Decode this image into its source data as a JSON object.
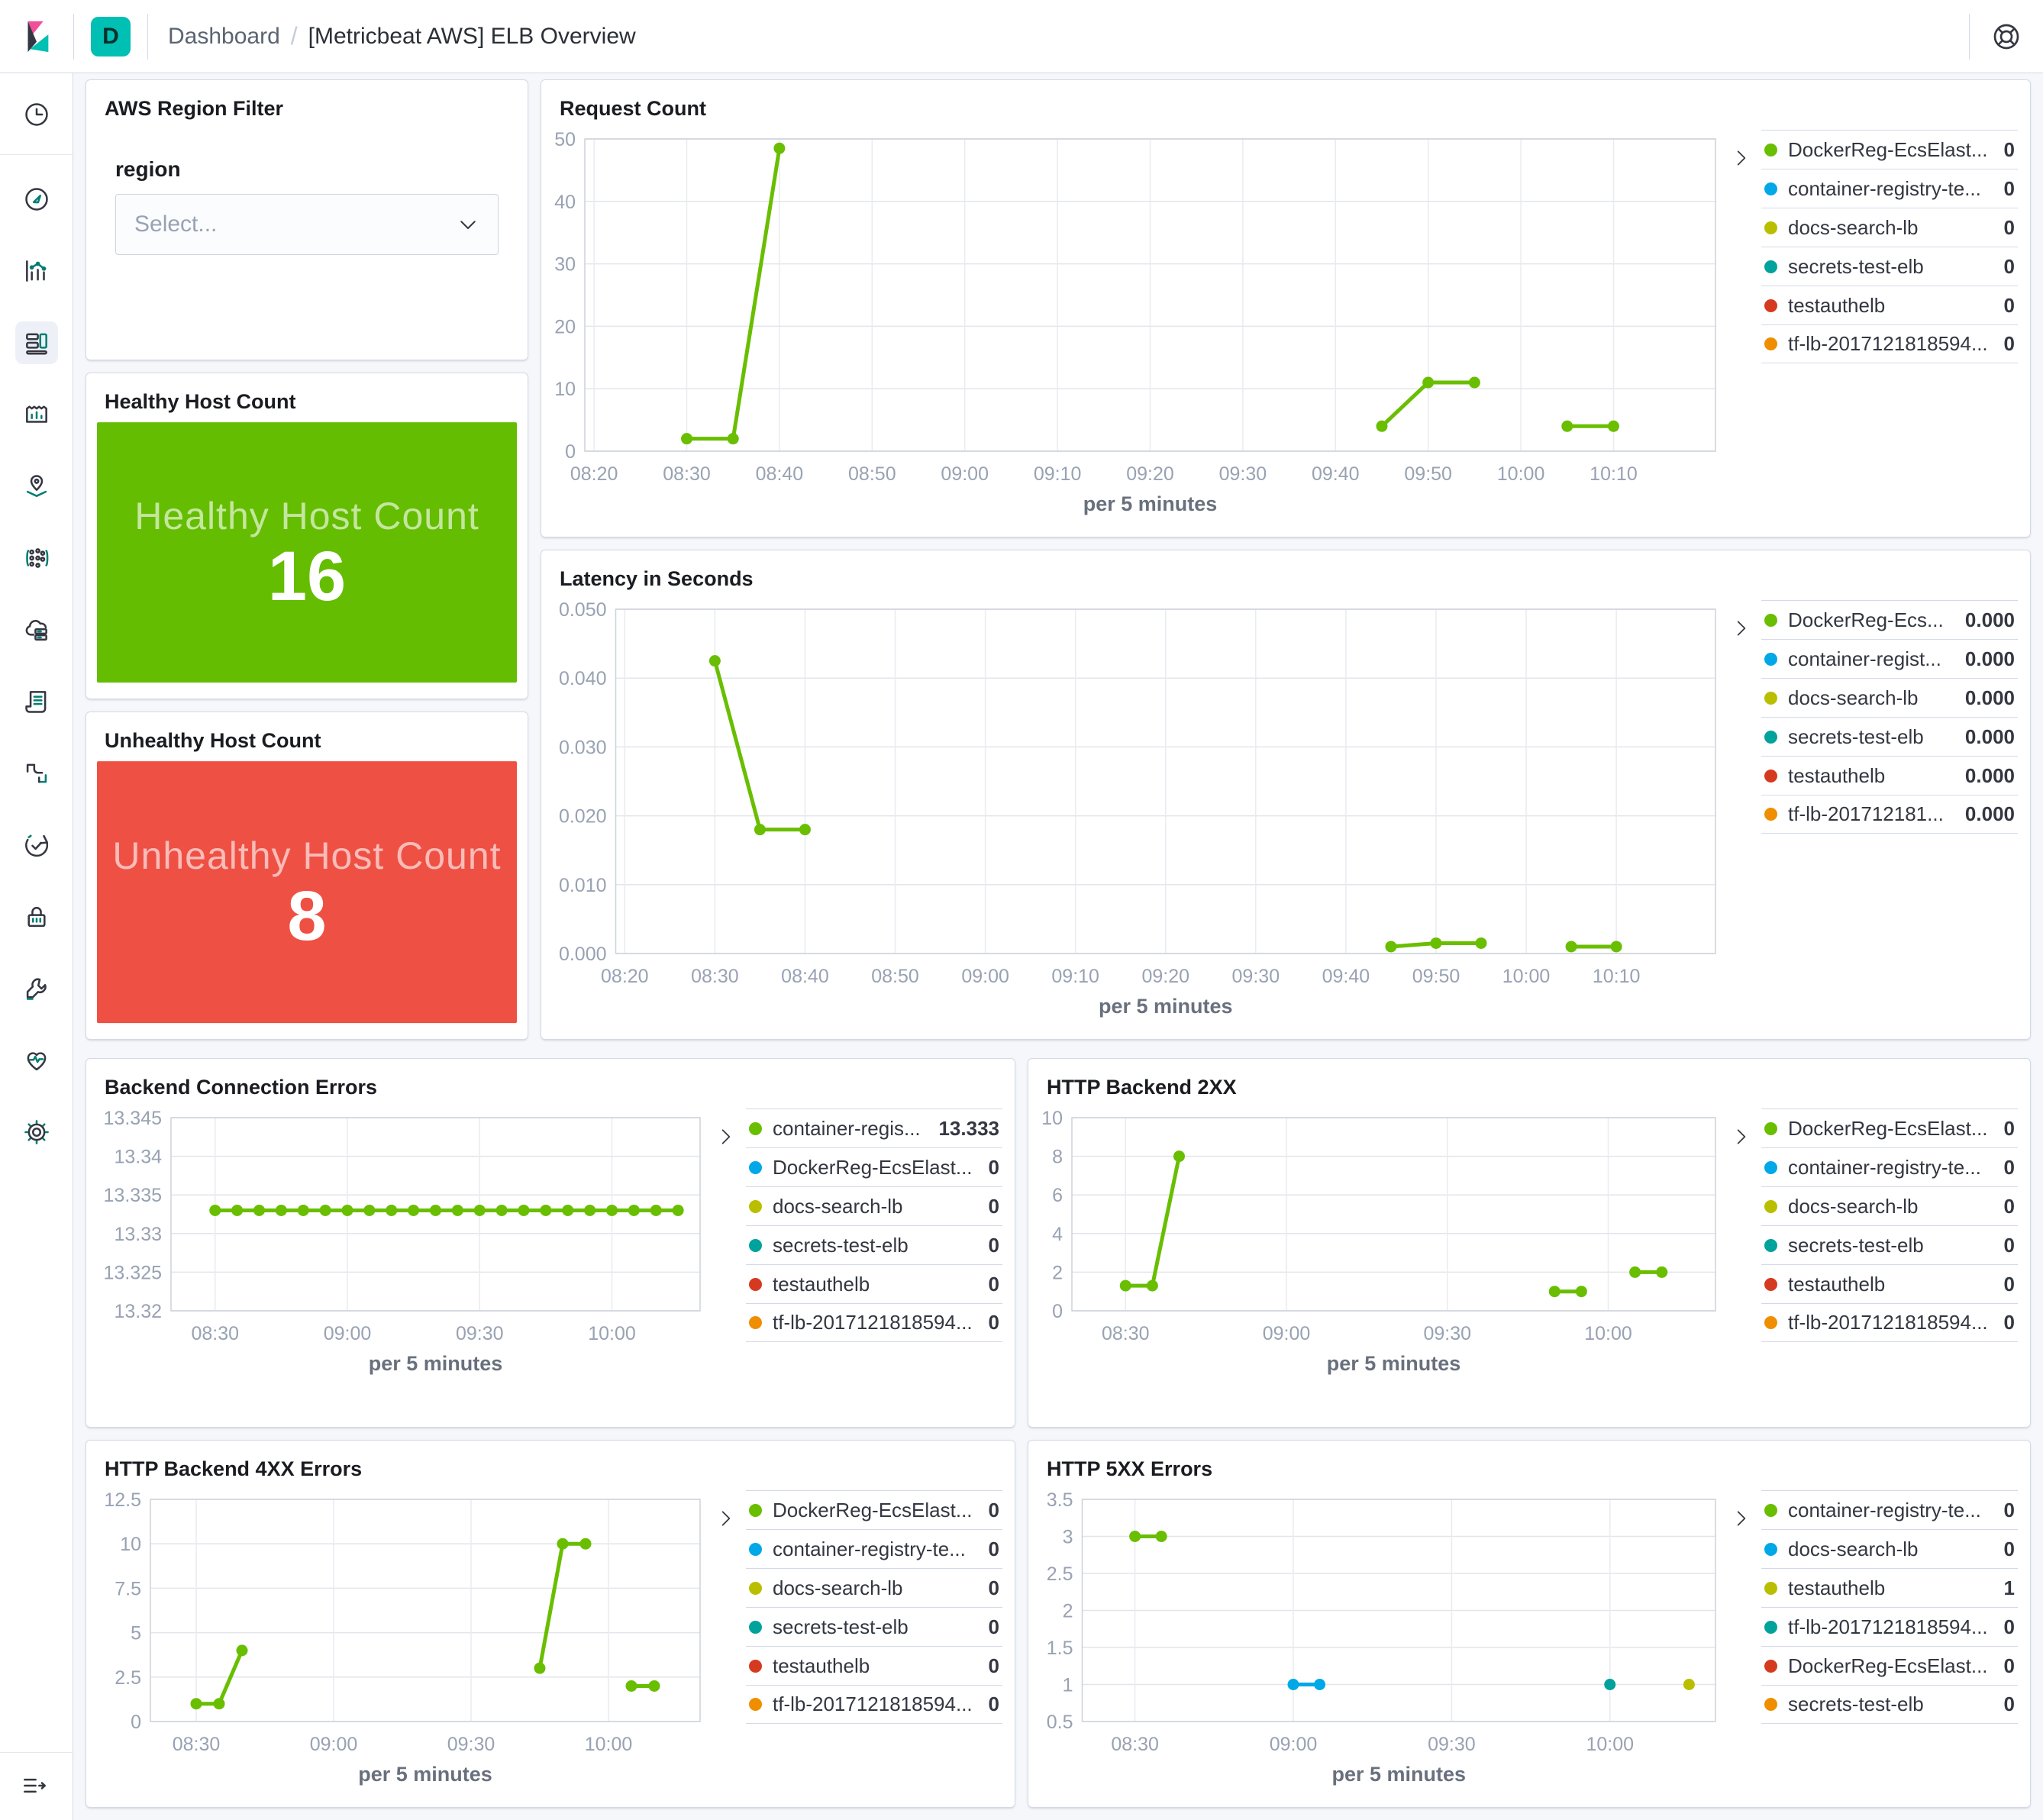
{
  "header": {
    "app_badge": "D",
    "breadcrumb_root": "Dashboard",
    "breadcrumb_separator": "/",
    "breadcrumb_current": "[Metricbeat AWS] ELB Overview",
    "badge_bg": "#00BFB3"
  },
  "sidebar": {
    "icons": [
      "recently-viewed",
      "discover",
      "visualize",
      "dashboard",
      "canvas",
      "maps",
      "machine-learning",
      "infrastructure",
      "logs",
      "apm",
      "uptime",
      "siem",
      "dev-tools",
      "stack-monitoring",
      "management"
    ],
    "active": "dashboard"
  },
  "filter_panel": {
    "title": "AWS Region Filter",
    "field_label": "region",
    "select_placeholder": "Select..."
  },
  "metrics": [
    {
      "title": "Healthy Host Count",
      "label": "Healthy Host Count",
      "value": "16",
      "color": "#64BD00"
    },
    {
      "title": "Unhealthy Host Count",
      "label": "Unhealthy Host Count",
      "value": "8",
      "color": "#EF5044"
    }
  ],
  "palette": {
    "green": "#69BE00",
    "blue": "#00A8E8",
    "olive": "#B9BF00",
    "teal": "#00A29C",
    "red": "#D53A20",
    "orange": "#EF8E00"
  },
  "chart_data": [
    {
      "type": "line",
      "title": "Request Count",
      "xlabel": "per 5 minutes",
      "x_domain": [
        19,
        141
      ],
      "x_ticks": [
        {
          "m": 20,
          "label": "08:20"
        },
        {
          "m": 30,
          "label": "08:30"
        },
        {
          "m": 40,
          "label": "08:40"
        },
        {
          "m": 50,
          "label": "08:50"
        },
        {
          "m": 60,
          "label": "09:00"
        },
        {
          "m": 70,
          "label": "09:10"
        },
        {
          "m": 80,
          "label": "09:20"
        },
        {
          "m": 90,
          "label": "09:30"
        },
        {
          "m": 100,
          "label": "09:40"
        },
        {
          "m": 110,
          "label": "09:50"
        },
        {
          "m": 120,
          "label": "10:00"
        },
        {
          "m": 130,
          "label": "10:10"
        }
      ],
      "ylim": [
        0,
        50
      ],
      "y_ticks": [
        {
          "v": 0,
          "label": "0"
        },
        {
          "v": 10,
          "label": "10"
        },
        {
          "v": 20,
          "label": "20"
        },
        {
          "v": 30,
          "label": "30"
        },
        {
          "v": 40,
          "label": "40"
        },
        {
          "v": 50,
          "label": "50"
        }
      ],
      "series": [
        {
          "name": "DockerReg-EcsElast...",
          "color": "#69BE00",
          "segments": [
            [
              [
                30,
                2
              ],
              [
                35,
                2
              ],
              [
                40,
                48.5
              ]
            ],
            [
              [
                105,
                4
              ],
              [
                110,
                11
              ],
              [
                115,
                11
              ]
            ],
            [
              [
                125,
                4
              ],
              [
                130,
                4
              ]
            ]
          ]
        }
      ],
      "legend": [
        {
          "label": "DockerReg-EcsElast...",
          "value": "0",
          "color": "#69BE00"
        },
        {
          "label": "container-registry-te...",
          "value": "0",
          "color": "#00A8E8"
        },
        {
          "label": "docs-search-lb",
          "value": "0",
          "color": "#B9BF00"
        },
        {
          "label": "secrets-test-elb",
          "value": "0",
          "color": "#00A29C"
        },
        {
          "label": "testauthelb",
          "value": "0",
          "color": "#D53A20"
        },
        {
          "label": "tf-lb-2017121818594...",
          "value": "0",
          "color": "#EF8E00"
        }
      ]
    },
    {
      "type": "line",
      "title": "Latency in Seconds",
      "xlabel": "per 5 minutes",
      "x_domain": [
        19,
        141
      ],
      "x_ticks": [
        {
          "m": 20,
          "label": "08:20"
        },
        {
          "m": 30,
          "label": "08:30"
        },
        {
          "m": 40,
          "label": "08:40"
        },
        {
          "m": 50,
          "label": "08:50"
        },
        {
          "m": 60,
          "label": "09:00"
        },
        {
          "m": 70,
          "label": "09:10"
        },
        {
          "m": 80,
          "label": "09:20"
        },
        {
          "m": 90,
          "label": "09:30"
        },
        {
          "m": 100,
          "label": "09:40"
        },
        {
          "m": 110,
          "label": "09:50"
        },
        {
          "m": 120,
          "label": "10:00"
        },
        {
          "m": 130,
          "label": "10:10"
        }
      ],
      "ylim": [
        0,
        0.05
      ],
      "y_ticks": [
        {
          "v": 0,
          "label": "0.000"
        },
        {
          "v": 0.01,
          "label": "0.010"
        },
        {
          "v": 0.02,
          "label": "0.020"
        },
        {
          "v": 0.03,
          "label": "0.030"
        },
        {
          "v": 0.04,
          "label": "0.040"
        },
        {
          "v": 0.05,
          "label": "0.050"
        }
      ],
      "series": [
        {
          "name": "DockerReg-Ecs...",
          "color": "#69BE00",
          "segments": [
            [
              [
                30,
                0.0425
              ],
              [
                35,
                0.018
              ],
              [
                40,
                0.018
              ]
            ],
            [
              [
                105,
                0.001
              ],
              [
                110,
                0.0015
              ],
              [
                115,
                0.0015
              ]
            ],
            [
              [
                125,
                0.001
              ],
              [
                130,
                0.001
              ]
            ]
          ]
        }
      ],
      "legend": [
        {
          "label": "DockerReg-Ecs...",
          "value": "0.000",
          "color": "#69BE00"
        },
        {
          "label": "container-regist...",
          "value": "0.000",
          "color": "#00A8E8"
        },
        {
          "label": "docs-search-lb",
          "value": "0.000",
          "color": "#B9BF00"
        },
        {
          "label": "secrets-test-elb",
          "value": "0.000",
          "color": "#00A29C"
        },
        {
          "label": "testauthelb",
          "value": "0.000",
          "color": "#D53A20"
        },
        {
          "label": "tf-lb-201712181...",
          "value": "0.000",
          "color": "#EF8E00"
        }
      ]
    },
    {
      "type": "line",
      "title": "Backend Connection Errors",
      "xlabel": "per 5 minutes",
      "x_domain": [
        20,
        140
      ],
      "x_ticks": [
        {
          "m": 30,
          "label": "08:30"
        },
        {
          "m": 60,
          "label": "09:00"
        },
        {
          "m": 90,
          "label": "09:30"
        },
        {
          "m": 120,
          "label": "10:00"
        }
      ],
      "ylim": [
        13.32,
        13.345
      ],
      "y_ticks": [
        {
          "v": 13.32,
          "label": "13.32"
        },
        {
          "v": 13.325,
          "label": "13.325"
        },
        {
          "v": 13.33,
          "label": "13.33"
        },
        {
          "v": 13.335,
          "label": "13.335"
        },
        {
          "v": 13.34,
          "label": "13.34"
        },
        {
          "v": 13.345,
          "label": "13.345"
        }
      ],
      "series": [
        {
          "name": "container-regis...",
          "color": "#69BE00",
          "segments": [
            [
              [
                30,
                13.333
              ],
              [
                35,
                13.333
              ],
              [
                40,
                13.333
              ],
              [
                45,
                13.333
              ],
              [
                50,
                13.333
              ],
              [
                55,
                13.333
              ],
              [
                60,
                13.333
              ],
              [
                65,
                13.333
              ],
              [
                70,
                13.333
              ],
              [
                75,
                13.333
              ],
              [
                80,
                13.333
              ],
              [
                85,
                13.333
              ],
              [
                90,
                13.333
              ],
              [
                95,
                13.333
              ],
              [
                100,
                13.333
              ],
              [
                105,
                13.333
              ],
              [
                110,
                13.333
              ],
              [
                115,
                13.333
              ],
              [
                120,
                13.333
              ],
              [
                125,
                13.333
              ],
              [
                130,
                13.333
              ],
              [
                135,
                13.333
              ]
            ]
          ]
        }
      ],
      "legend": [
        {
          "label": "container-regis...",
          "value": "13.333",
          "color": "#69BE00"
        },
        {
          "label": "DockerReg-EcsElast...",
          "value": "0",
          "color": "#00A8E8"
        },
        {
          "label": "docs-search-lb",
          "value": "0",
          "color": "#B9BF00"
        },
        {
          "label": "secrets-test-elb",
          "value": "0",
          "color": "#00A29C"
        },
        {
          "label": "testauthelb",
          "value": "0",
          "color": "#D53A20"
        },
        {
          "label": "tf-lb-2017121818594...",
          "value": "0",
          "color": "#EF8E00"
        }
      ]
    },
    {
      "type": "line",
      "title": "HTTP Backend 2XX",
      "xlabel": "per 5 minutes",
      "x_domain": [
        20,
        140
      ],
      "x_ticks": [
        {
          "m": 30,
          "label": "08:30"
        },
        {
          "m": 60,
          "label": "09:00"
        },
        {
          "m": 90,
          "label": "09:30"
        },
        {
          "m": 120,
          "label": "10:00"
        }
      ],
      "ylim": [
        0,
        10
      ],
      "y_ticks": [
        {
          "v": 0,
          "label": "0"
        },
        {
          "v": 2,
          "label": "2"
        },
        {
          "v": 4,
          "label": "4"
        },
        {
          "v": 6,
          "label": "6"
        },
        {
          "v": 8,
          "label": "8"
        },
        {
          "v": 10,
          "label": "10"
        }
      ],
      "series": [
        {
          "name": "DockerReg-EcsElast...",
          "color": "#69BE00",
          "segments": [
            [
              [
                30,
                1.3
              ],
              [
                35,
                1.3
              ],
              [
                40,
                8
              ]
            ],
            [
              [
                110,
                1
              ],
              [
                115,
                1
              ]
            ],
            [
              [
                125,
                2
              ],
              [
                130,
                2
              ]
            ]
          ]
        }
      ],
      "legend": [
        {
          "label": "DockerReg-EcsElast...",
          "value": "0",
          "color": "#69BE00"
        },
        {
          "label": "container-registry-te...",
          "value": "0",
          "color": "#00A8E8"
        },
        {
          "label": "docs-search-lb",
          "value": "0",
          "color": "#B9BF00"
        },
        {
          "label": "secrets-test-elb",
          "value": "0",
          "color": "#00A29C"
        },
        {
          "label": "testauthelb",
          "value": "0",
          "color": "#D53A20"
        },
        {
          "label": "tf-lb-2017121818594...",
          "value": "0",
          "color": "#EF8E00"
        }
      ]
    },
    {
      "type": "line",
      "title": "HTTP Backend 4XX Errors",
      "xlabel": "per 5 minutes",
      "x_domain": [
        20,
        140
      ],
      "x_ticks": [
        {
          "m": 30,
          "label": "08:30"
        },
        {
          "m": 60,
          "label": "09:00"
        },
        {
          "m": 90,
          "label": "09:30"
        },
        {
          "m": 120,
          "label": "10:00"
        }
      ],
      "ylim": [
        0,
        12.5
      ],
      "y_ticks": [
        {
          "v": 0,
          "label": "0"
        },
        {
          "v": 2.5,
          "label": "2.5"
        },
        {
          "v": 5,
          "label": "5"
        },
        {
          "v": 7.5,
          "label": "7.5"
        },
        {
          "v": 10,
          "label": "10"
        },
        {
          "v": 12.5,
          "label": "12.5"
        }
      ],
      "series": [
        {
          "name": "DockerReg-EcsElast...",
          "color": "#69BE00",
          "segments": [
            [
              [
                30,
                1
              ],
              [
                35,
                1
              ],
              [
                40,
                4
              ]
            ],
            [
              [
                105,
                3
              ],
              [
                110,
                10
              ],
              [
                115,
                10
              ]
            ],
            [
              [
                125,
                2
              ],
              [
                130,
                2
              ]
            ]
          ]
        }
      ],
      "legend": [
        {
          "label": "DockerReg-EcsElast...",
          "value": "0",
          "color": "#69BE00"
        },
        {
          "label": "container-registry-te...",
          "value": "0",
          "color": "#00A8E8"
        },
        {
          "label": "docs-search-lb",
          "value": "0",
          "color": "#B9BF00"
        },
        {
          "label": "secrets-test-elb",
          "value": "0",
          "color": "#00A29C"
        },
        {
          "label": "testauthelb",
          "value": "0",
          "color": "#D53A20"
        },
        {
          "label": "tf-lb-2017121818594...",
          "value": "0",
          "color": "#EF8E00"
        }
      ]
    },
    {
      "type": "line",
      "title": "HTTP 5XX Errors",
      "xlabel": "per 5 minutes",
      "x_domain": [
        20,
        140
      ],
      "x_ticks": [
        {
          "m": 30,
          "label": "08:30"
        },
        {
          "m": 60,
          "label": "09:00"
        },
        {
          "m": 90,
          "label": "09:30"
        },
        {
          "m": 120,
          "label": "10:00"
        }
      ],
      "ylim": [
        0.5,
        3.5
      ],
      "y_ticks": [
        {
          "v": 0.5,
          "label": "0.5"
        },
        {
          "v": 1,
          "label": "1"
        },
        {
          "v": 1.5,
          "label": "1.5"
        },
        {
          "v": 2,
          "label": "2"
        },
        {
          "v": 2.5,
          "label": "2.5"
        },
        {
          "v": 3,
          "label": "3"
        },
        {
          "v": 3.5,
          "label": "3.5"
        }
      ],
      "series": [
        {
          "name": "container-registry-te...",
          "color": "#69BE00",
          "segments": [
            [
              [
                30,
                3
              ],
              [
                35,
                3
              ]
            ]
          ]
        },
        {
          "name": "docs-search-lb",
          "color": "#00A8E8",
          "segments": [
            [
              [
                60,
                1
              ],
              [
                65,
                1
              ]
            ]
          ]
        },
        {
          "name": "tf-lb-2017121818594...",
          "color": "#00A29C",
          "segments": [
            [
              [
                120,
                1
              ]
            ]
          ]
        },
        {
          "name": "testauthelb",
          "color": "#B9BF00",
          "segments": [
            [
              [
                135,
                1
              ]
            ]
          ]
        }
      ],
      "legend": [
        {
          "label": "container-registry-te...",
          "value": "0",
          "color": "#69BE00"
        },
        {
          "label": "docs-search-lb",
          "value": "0",
          "color": "#00A8E8"
        },
        {
          "label": "testauthelb",
          "value": "1",
          "color": "#B9BF00"
        },
        {
          "label": "tf-lb-2017121818594...",
          "value": "0",
          "color": "#00A29C"
        },
        {
          "label": "DockerReg-EcsElast...",
          "value": "0",
          "color": "#D53A20"
        },
        {
          "label": "secrets-test-elb",
          "value": "0",
          "color": "#EF8E00"
        }
      ]
    }
  ]
}
